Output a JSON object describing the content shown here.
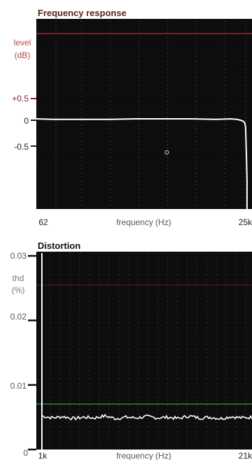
{
  "chart_data": [
    {
      "type": "line",
      "title": "Frequency response",
      "ylabel_line1": "level",
      "ylabel_line2": "(dB)",
      "xlabel": "frequency (Hz)",
      "x_tick_labels": [
        "62",
        "25k"
      ],
      "y_tick_labels": [
        "+0.5",
        "0",
        "-0.5"
      ],
      "xlim": [
        62,
        25000
      ],
      "ylim": [
        -1.4,
        1.3
      ],
      "x_scale": "log",
      "grid": true,
      "series": [
        {
          "color": "#ffffff",
          "x": [
            62,
            100,
            200,
            500,
            1000,
            2000,
            5000,
            10000,
            15000,
            18000,
            20000,
            21500,
            22500,
            23000,
            23500,
            24000
          ],
          "y": [
            0.03,
            0.02,
            0.02,
            0.02,
            0.03,
            0.03,
            0.03,
            0.02,
            0.03,
            0.02,
            0.0,
            -0.02,
            -0.06,
            -0.15,
            -0.7,
            -1.3
          ]
        }
      ],
      "reference_line_color": "#9b2b36",
      "plot_background": "#0d0d0d"
    },
    {
      "type": "line",
      "title": "Distortion",
      "ylabel_line1": "thd",
      "ylabel_line2": "(%)",
      "xlabel": "frequency (Hz)",
      "x_tick_labels": [
        "1k",
        "21k"
      ],
      "y_tick_labels": [
        "0.03",
        "0.02",
        "0.01",
        "0"
      ],
      "xlim": [
        1000,
        21000
      ],
      "ylim": [
        0,
        0.03
      ],
      "grid": true,
      "series": [
        {
          "color": "#ffffff",
          "x": [
            1000,
            2000,
            3000,
            4000,
            5000,
            6000,
            7000,
            8000,
            9000,
            10000,
            11000,
            12000,
            13000,
            14000,
            15000,
            16000,
            17000,
            18000,
            19000,
            20000,
            21000
          ],
          "y": [
            0.0052,
            0.0049,
            0.0051,
            0.0048,
            0.005,
            0.0049,
            0.0052,
            0.0048,
            0.005,
            0.0049,
            0.0051,
            0.0049,
            0.005,
            0.0048,
            0.0052,
            0.0049,
            0.005,
            0.0048,
            0.0051,
            0.0049,
            0.005
          ]
        }
      ],
      "reference_line_color": "#1f8a3a",
      "plot_background": "#0d0d0d"
    }
  ]
}
